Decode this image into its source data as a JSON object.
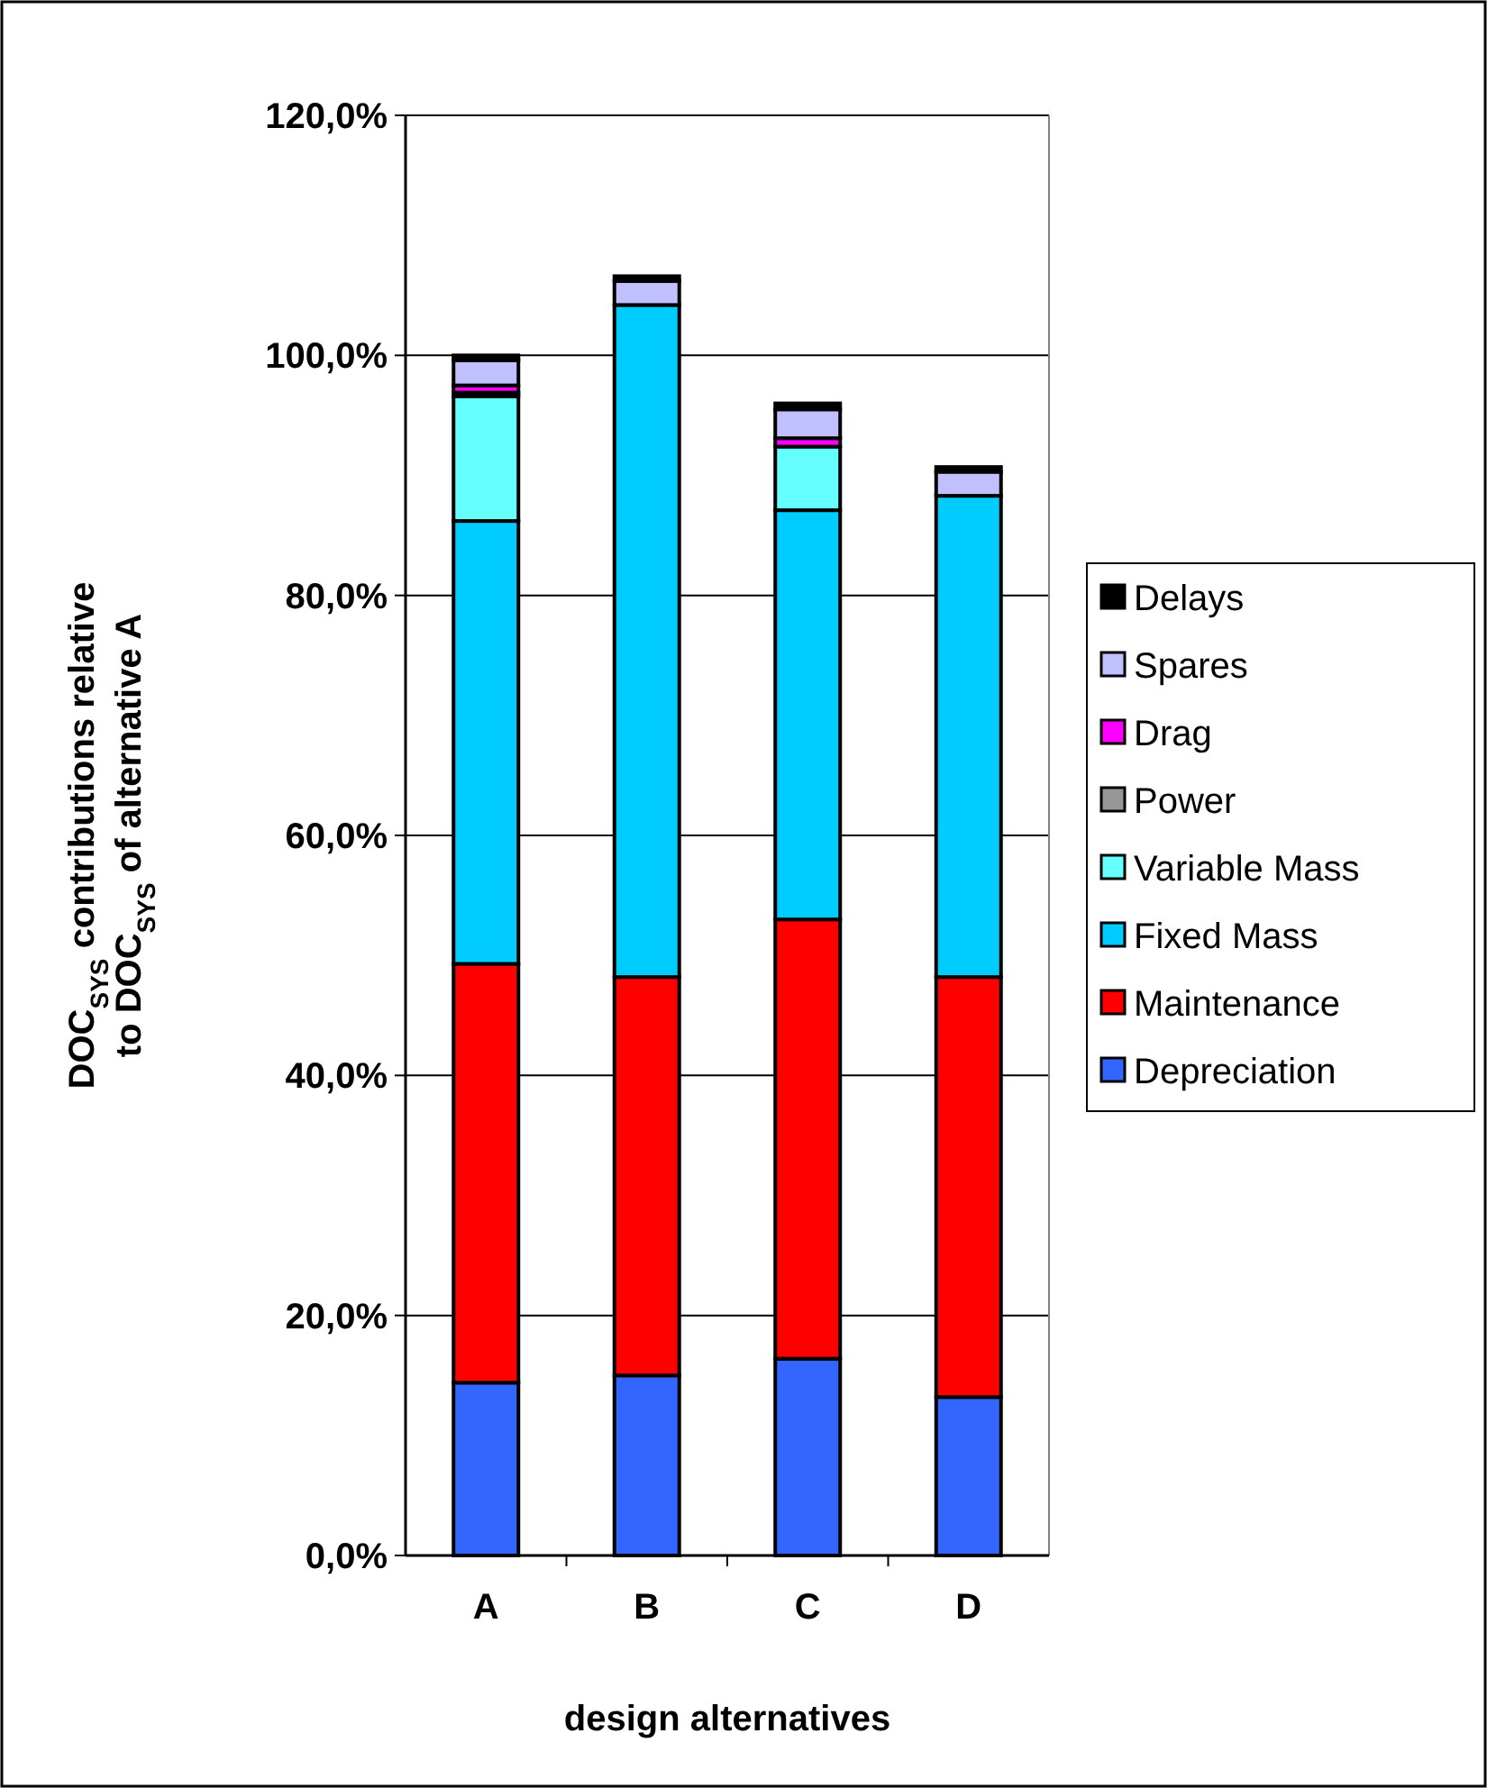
{
  "chart_data": {
    "type": "bar",
    "stacked": true,
    "xlabel": "design alternatives",
    "ylabel": "DOC$_{SYS}$ contributions relative\nto DOC$_{SYS}$ of alternative A",
    "categories": [
      "A",
      "B",
      "C",
      "D"
    ],
    "series": [
      {
        "name": "Depreciation",
        "color": "#3366ff",
        "values": [
          14.4,
          15.0,
          16.4,
          13.2
        ]
      },
      {
        "name": "Maintenance",
        "color": "#ff0000",
        "values": [
          34.9,
          33.2,
          36.6,
          35.0
        ]
      },
      {
        "name": "Fixed Mass",
        "color": "#00ccff",
        "values": [
          36.9,
          56.0,
          34.1,
          40.1
        ]
      },
      {
        "name": "Variable Mass",
        "color": "#66ffff",
        "values": [
          10.4,
          0,
          5.3,
          0
        ]
      },
      {
        "name": "Power",
        "color": "#969696",
        "values": [
          0.3,
          0,
          null,
          0
        ]
      },
      {
        "name": "Drag",
        "color": "#ff00ff",
        "values": [
          0.6,
          0,
          0.7,
          0
        ]
      },
      {
        "name": "Spares",
        "color": "#c0c0ff",
        "values": [
          2.1,
          2.0,
          2.4,
          2.0
        ]
      },
      {
        "name": "Delays",
        "color": "#000000",
        "values": [
          0.4,
          0.4,
          0.5,
          0.4
        ]
      }
    ],
    "ylim": [
      0,
      120
    ],
    "yticks": [
      {
        "value": 0,
        "label": "0,0%"
      },
      {
        "value": 20,
        "label": "20,0%"
      },
      {
        "value": 40,
        "label": "40,0%"
      },
      {
        "value": 60,
        "label": "60,0%"
      },
      {
        "value": 80,
        "label": "80,0%"
      },
      {
        "value": 100,
        "label": "100,0%"
      },
      {
        "value": 120,
        "label": "120,0%"
      }
    ],
    "grid": "y",
    "legend": "right"
  }
}
